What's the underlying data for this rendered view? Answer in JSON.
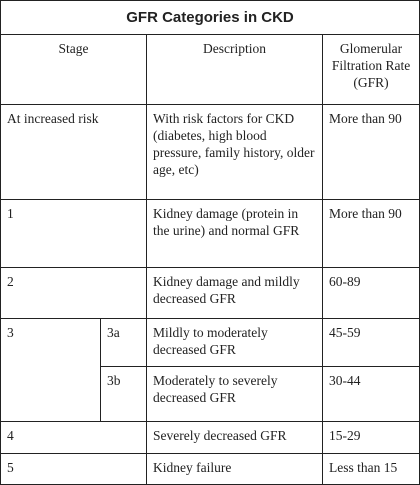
{
  "table": {
    "title": "GFR Categories in CKD",
    "header": [
      "Stage",
      "Description",
      "Glomerular Filtration Rate (GFR)"
    ],
    "rows": [
      {
        "stage": "At increased risk",
        "description": "With risk factors for CKD (diabetes, high blood pressure, family history, older age, etc)",
        "gfr": "More than 90"
      },
      {
        "stage": "1",
        "description": "Kidney damage (protein in the urine) and normal GFR",
        "gfr": "More than 90"
      },
      {
        "stage": "2",
        "description": "Kidney damage and mildly decreased GFR",
        "gfr": "60-89"
      },
      {
        "stage": "3",
        "substages": [
          {
            "substage": "3a",
            "description": "Mildly to moderately decreased GFR",
            "gfr": "45-59"
          },
          {
            "substage": "3b",
            "description": "Moderately to severely decreased GFR",
            "gfr": "30-44"
          }
        ]
      },
      {
        "stage": "4",
        "description": "Severely decreased GFR",
        "gfr": "15-29"
      },
      {
        "stage": "5",
        "description": "Kidney failure",
        "gfr": "Less than 15"
      }
    ]
  }
}
